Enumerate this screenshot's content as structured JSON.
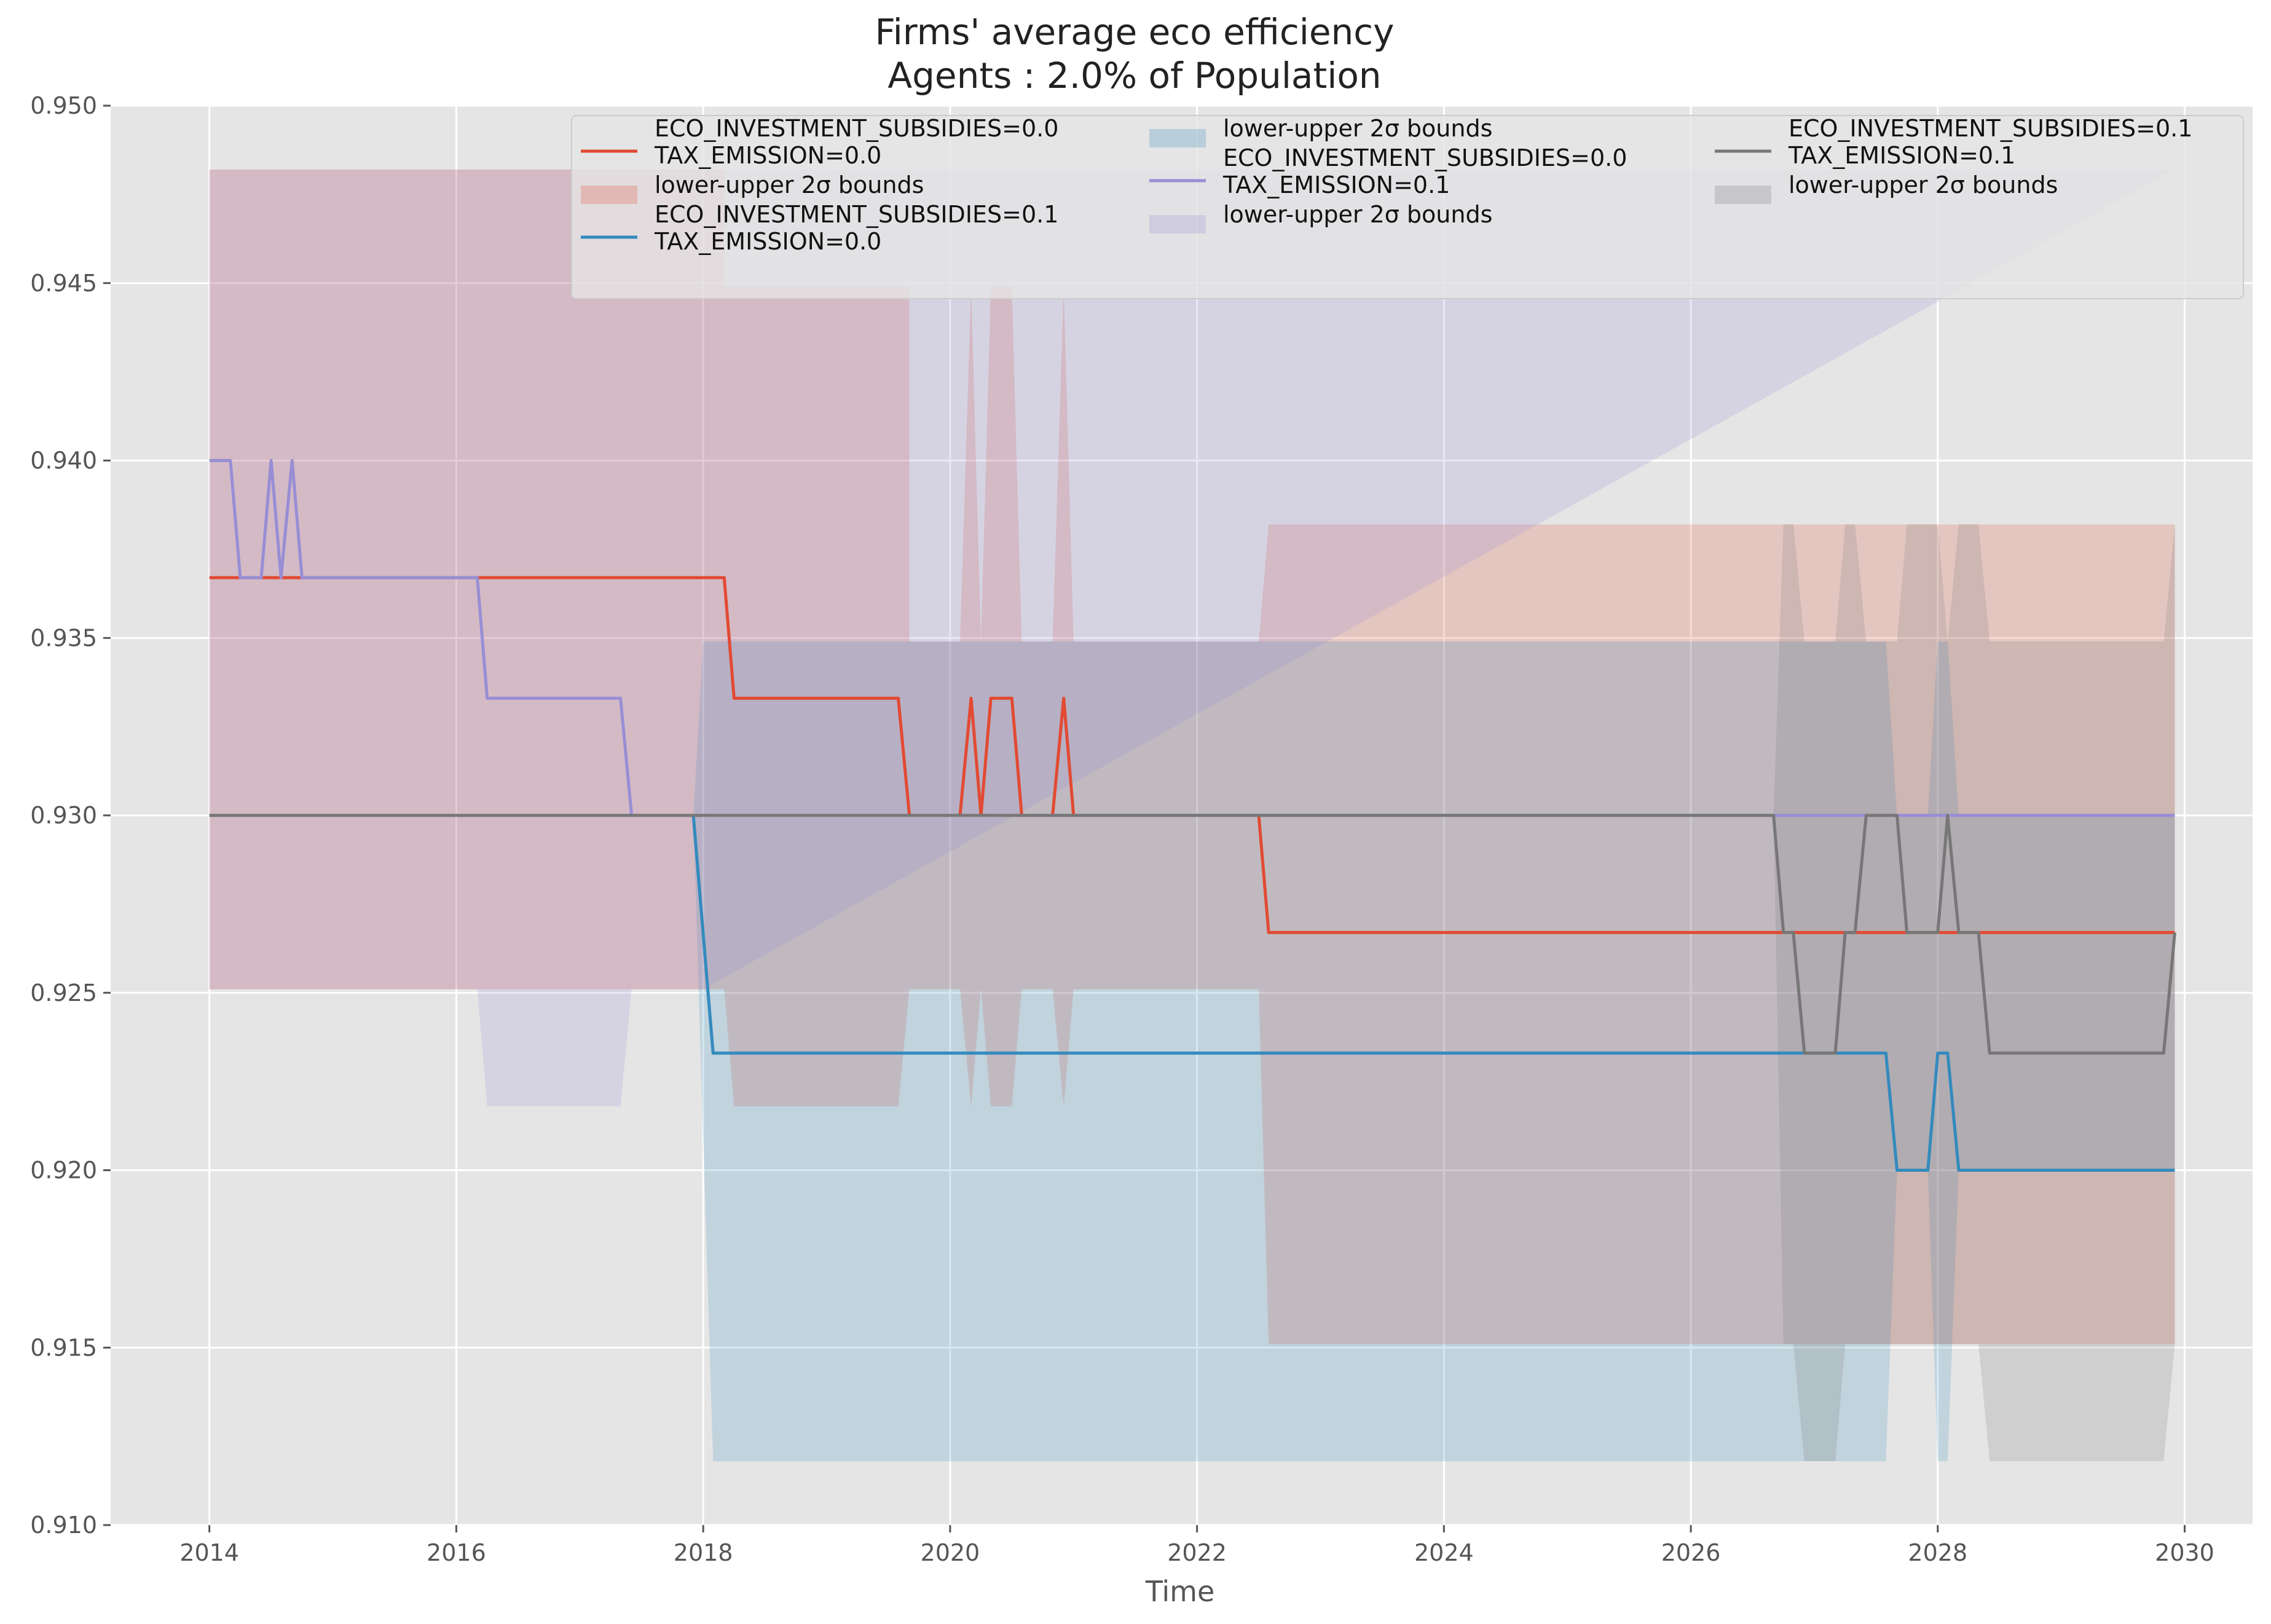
{
  "chart_data": {
    "type": "line",
    "title": "Firms' average eco efficiency",
    "subtitle": "Agents : 2.0% of Population",
    "xlabel": "Time",
    "ylabel": "",
    "xlim": [
      2013.2,
      2030.55
    ],
    "ylim": [
      0.91,
      0.95
    ],
    "x_ticks": [
      2014,
      2016,
      2018,
      2020,
      2022,
      2024,
      2026,
      2028,
      2030
    ],
    "x_tick_labels": [
      "2014",
      "2016",
      "2018",
      "2020",
      "2022",
      "2024",
      "2026",
      "2028",
      "2030"
    ],
    "y_ticks": [
      0.91,
      0.915,
      0.92,
      0.925,
      0.93,
      0.935,
      0.94,
      0.945,
      0.95
    ],
    "y_tick_labels": [
      "0.910",
      "0.915",
      "0.920",
      "0.925",
      "0.930",
      "0.935",
      "0.940",
      "0.945",
      "0.950"
    ],
    "grid": true,
    "background": "#e5e5e5",
    "legend_position": "top",
    "legend": [
      {
        "kind": "line",
        "series": 0,
        "lines": [
          "ECO_INVESTMENT_SUBSIDIES=0.0",
          "TAX_EMISSION=0.0"
        ]
      },
      {
        "kind": "band",
        "series": 0,
        "lines": [
          "lower-upper 2σ bounds"
        ]
      },
      {
        "kind": "line",
        "series": 1,
        "lines": [
          "ECO_INVESTMENT_SUBSIDIES=0.1",
          "TAX_EMISSION=0.0"
        ]
      },
      {
        "kind": "band",
        "series": 1,
        "lines": [
          "lower-upper 2σ bounds"
        ]
      },
      {
        "kind": "line",
        "series": 2,
        "lines": [
          "ECO_INVESTMENT_SUBSIDIES=0.0",
          "TAX_EMISSION=0.1"
        ]
      },
      {
        "kind": "band",
        "series": 2,
        "lines": [
          "lower-upper 2σ bounds"
        ]
      },
      {
        "kind": "line",
        "series": 3,
        "lines": [
          "ECO_INVESTMENT_SUBSIDIES=0.1",
          "TAX_EMISSION=0.1"
        ]
      },
      {
        "kind": "band",
        "series": 3,
        "lines": [
          "lower-upper 2σ bounds"
        ]
      }
    ],
    "series": [
      {
        "color": "#e24a33",
        "line": [
          [
            2014.0,
            0.9367
          ],
          [
            2018.17,
            0.9367
          ],
          [
            2018.25,
            0.9333
          ],
          [
            2019.58,
            0.9333
          ],
          [
            2019.67,
            0.93
          ],
          [
            2020.08,
            0.93
          ],
          [
            2020.17,
            0.9333
          ],
          [
            2020.25,
            0.93
          ],
          [
            2020.33,
            0.9333
          ],
          [
            2020.5,
            0.9333
          ],
          [
            2020.58,
            0.93
          ],
          [
            2020.83,
            0.93
          ],
          [
            2020.92,
            0.9333
          ],
          [
            2021.0,
            0.93
          ],
          [
            2022.5,
            0.93
          ],
          [
            2022.58,
            0.9267
          ],
          [
            2029.92,
            0.9267
          ]
        ],
        "band_upper": [
          [
            2014.0,
            0.9482
          ],
          [
            2018.17,
            0.9482
          ],
          [
            2018.17,
            0.9449
          ],
          [
            2019.67,
            0.9449
          ],
          [
            2019.67,
            0.9349
          ],
          [
            2020.08,
            0.9349
          ],
          [
            2020.17,
            0.9449
          ],
          [
            2020.25,
            0.9349
          ],
          [
            2020.33,
            0.9449
          ],
          [
            2020.5,
            0.9449
          ],
          [
            2020.58,
            0.9349
          ],
          [
            2020.83,
            0.9349
          ],
          [
            2020.92,
            0.9449
          ],
          [
            2021.0,
            0.9349
          ],
          [
            2022.5,
            0.9349
          ],
          [
            2022.58,
            0.9382
          ],
          [
            2029.92,
            0.9382
          ]
        ],
        "band_lower": [
          [
            2014.0,
            0.9251
          ],
          [
            2018.17,
            0.9251
          ],
          [
            2018.25,
            0.9218
          ],
          [
            2019.58,
            0.9218
          ],
          [
            2019.67,
            0.9251
          ],
          [
            2020.08,
            0.9251
          ],
          [
            2020.17,
            0.9218
          ],
          [
            2020.25,
            0.9251
          ],
          [
            2020.33,
            0.9218
          ],
          [
            2020.5,
            0.9218
          ],
          [
            2020.58,
            0.9251
          ],
          [
            2020.83,
            0.9251
          ],
          [
            2020.92,
            0.9218
          ],
          [
            2021.0,
            0.9251
          ],
          [
            2022.5,
            0.9251
          ],
          [
            2022.58,
            0.9151
          ],
          [
            2029.92,
            0.9151
          ]
        ]
      },
      {
        "color": "#348abd",
        "line": [
          [
            2014.0,
            0.93
          ],
          [
            2017.92,
            0.93
          ],
          [
            2018.08,
            0.9233
          ],
          [
            2027.58,
            0.9233
          ],
          [
            2027.67,
            0.92
          ],
          [
            2027.92,
            0.92
          ],
          [
            2028.0,
            0.9233
          ],
          [
            2028.08,
            0.9233
          ],
          [
            2028.17,
            0.92
          ],
          [
            2029.92,
            0.92
          ]
        ],
        "band_upper": [
          [
            2014.0,
            0.93
          ],
          [
            2017.92,
            0.93
          ],
          [
            2018.0,
            0.9349
          ],
          [
            2027.58,
            0.9349
          ],
          [
            2027.67,
            0.93
          ],
          [
            2027.92,
            0.93
          ],
          [
            2028.0,
            0.9349
          ],
          [
            2028.08,
            0.9349
          ],
          [
            2028.17,
            0.93
          ],
          [
            2029.92,
            0.93
          ]
        ],
        "band_lower": [
          [
            2014.0,
            0.93
          ],
          [
            2017.92,
            0.93
          ],
          [
            2018.08,
            0.9118
          ],
          [
            2027.58,
            0.9118
          ],
          [
            2027.67,
            0.92
          ],
          [
            2027.92,
            0.92
          ],
          [
            2028.0,
            0.9118
          ],
          [
            2028.08,
            0.9118
          ],
          [
            2028.17,
            0.92
          ],
          [
            2029.92,
            0.92
          ]
        ]
      },
      {
        "color": "#988ed5",
        "line": [
          [
            2014.0,
            0.94
          ],
          [
            2014.17,
            0.94
          ],
          [
            2014.25,
            0.9367
          ],
          [
            2014.42,
            0.9367
          ],
          [
            2014.5,
            0.94
          ],
          [
            2014.58,
            0.9367
          ],
          [
            2014.67,
            0.94
          ],
          [
            2014.75,
            0.9367
          ],
          [
            2016.17,
            0.9367
          ],
          [
            2016.25,
            0.9333
          ],
          [
            2017.33,
            0.9333
          ],
          [
            2017.42,
            0.93
          ],
          [
            2029.92,
            0.93
          ]
        ],
        "band_upper": [
          [
            2014.0,
            0.9482
          ],
          [
            2029.92,
            0.9482
          ]
        ],
        "band_lower": [
          [
            2014.0,
            0.9251
          ],
          [
            2016.17,
            0.9251
          ],
          [
            2016.25,
            0.9218
          ],
          [
            2017.33,
            0.9218
          ],
          [
            2017.42,
            0.9251
          ],
          [
            2018.0,
            0.9251
          ]
        ]
      },
      {
        "color": "#777777",
        "line": [
          [
            2014.0,
            0.93
          ],
          [
            2026.67,
            0.93
          ],
          [
            2026.75,
            0.9267
          ],
          [
            2026.83,
            0.9267
          ],
          [
            2026.92,
            0.9233
          ],
          [
            2027.17,
            0.9233
          ],
          [
            2027.25,
            0.9267
          ],
          [
            2027.33,
            0.9267
          ],
          [
            2027.42,
            0.93
          ],
          [
            2027.67,
            0.93
          ],
          [
            2027.75,
            0.9267
          ],
          [
            2028.0,
            0.9267
          ],
          [
            2028.08,
            0.93
          ],
          [
            2028.17,
            0.9267
          ],
          [
            2028.33,
            0.9267
          ],
          [
            2028.42,
            0.9233
          ],
          [
            2029.83,
            0.9233
          ],
          [
            2029.92,
            0.9267
          ]
        ],
        "band_upper": [
          [
            2014.0,
            0.93
          ],
          [
            2026.67,
            0.93
          ],
          [
            2026.75,
            0.9382
          ],
          [
            2026.83,
            0.9382
          ],
          [
            2026.92,
            0.9349
          ],
          [
            2027.17,
            0.9349
          ],
          [
            2027.25,
            0.9382
          ],
          [
            2027.33,
            0.9382
          ],
          [
            2027.42,
            0.9349
          ],
          [
            2027.67,
            0.9349
          ],
          [
            2027.75,
            0.9382
          ],
          [
            2028.0,
            0.9382
          ],
          [
            2028.08,
            0.9349
          ],
          [
            2028.17,
            0.9382
          ],
          [
            2028.33,
            0.9382
          ],
          [
            2028.42,
            0.9349
          ],
          [
            2029.83,
            0.9349
          ],
          [
            2029.92,
            0.9382
          ]
        ],
        "band_lower": [
          [
            2014.0,
            0.93
          ],
          [
            2026.67,
            0.93
          ],
          [
            2026.75,
            0.9151
          ],
          [
            2026.83,
            0.9151
          ],
          [
            2026.92,
            0.9118
          ],
          [
            2027.17,
            0.9118
          ],
          [
            2027.25,
            0.9151
          ],
          [
            2027.33,
            0.9151
          ],
          [
            2027.42,
            0.9151
          ],
          [
            2027.67,
            0.9151
          ],
          [
            2027.75,
            0.9151
          ],
          [
            2028.0,
            0.9151
          ],
          [
            2028.08,
            0.9151
          ],
          [
            2028.17,
            0.9151
          ],
          [
            2028.33,
            0.9151
          ],
          [
            2028.42,
            0.9118
          ],
          [
            2029.83,
            0.9118
          ],
          [
            2029.92,
            0.9151
          ]
        ]
      }
    ]
  }
}
